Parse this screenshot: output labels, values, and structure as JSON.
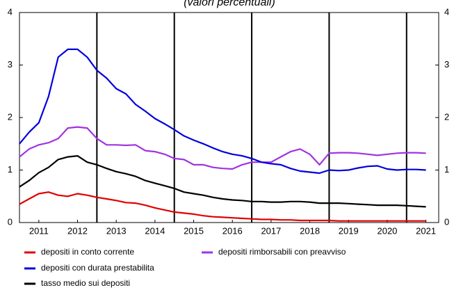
{
  "chart_data": {
    "type": "line",
    "title": "(valori percentuali)",
    "x": [
      2011,
      2011.25,
      2011.5,
      2011.75,
      2012,
      2012.25,
      2012.5,
      2012.75,
      2013,
      2013.25,
      2013.5,
      2013.75,
      2014,
      2014.25,
      2014.5,
      2014.75,
      2015,
      2015.25,
      2015.5,
      2015.75,
      2016,
      2016.25,
      2016.5,
      2016.75,
      2017,
      2017.25,
      2017.5,
      2017.75,
      2018,
      2018.25,
      2018.5,
      2018.75,
      2019,
      2019.25,
      2019.5,
      2019.75,
      2020,
      2020.25,
      2020.5,
      2020.75,
      2021,
      2021.25,
      2021.5
    ],
    "series": [
      {
        "name": "depositi in conto corrente",
        "color": "#e00000",
        "values": [
          0.35,
          0.45,
          0.55,
          0.58,
          0.52,
          0.5,
          0.55,
          0.52,
          0.48,
          0.45,
          0.42,
          0.38,
          0.37,
          0.33,
          0.28,
          0.24,
          0.2,
          0.18,
          0.16,
          0.13,
          0.11,
          0.1,
          0.09,
          0.08,
          0.07,
          0.06,
          0.06,
          0.05,
          0.05,
          0.04,
          0.04,
          0.04,
          0.04,
          0.03,
          0.03,
          0.03,
          0.03,
          0.03,
          0.03,
          0.03,
          0.03,
          0.03,
          0.03
        ]
      },
      {
        "name": "depositi rimborsabili con preavviso",
        "color": "#a033e0",
        "values": [
          1.25,
          1.4,
          1.48,
          1.52,
          1.6,
          1.8,
          1.82,
          1.8,
          1.6,
          1.48,
          1.48,
          1.47,
          1.48,
          1.37,
          1.35,
          1.3,
          1.22,
          1.2,
          1.1,
          1.1,
          1.05,
          1.03,
          1.02,
          1.1,
          1.15,
          1.15,
          1.15,
          1.25,
          1.35,
          1.4,
          1.3,
          1.1,
          1.32,
          1.33,
          1.33,
          1.32,
          1.3,
          1.28,
          1.3,
          1.32,
          1.33,
          1.33,
          1.32
        ]
      },
      {
        "name": "depositi con durata prestabilita",
        "color": "#0000dd",
        "values": [
          1.5,
          1.72,
          1.9,
          2.4,
          3.15,
          3.3,
          3.3,
          3.15,
          2.9,
          2.75,
          2.55,
          2.45,
          2.25,
          2.12,
          1.98,
          1.88,
          1.77,
          1.65,
          1.57,
          1.5,
          1.42,
          1.35,
          1.3,
          1.27,
          1.22,
          1.15,
          1.12,
          1.1,
          1.03,
          0.98,
          0.96,
          0.94,
          1.0,
          0.99,
          1.0,
          1.04,
          1.07,
          1.08,
          1.02,
          1.0,
          1.01,
          1.01,
          1.0
        ]
      },
      {
        "name": "tasso medio sui depositi",
        "color": "#000000",
        "values": [
          0.68,
          0.8,
          0.95,
          1.05,
          1.2,
          1.25,
          1.27,
          1.15,
          1.1,
          1.03,
          0.97,
          0.93,
          0.88,
          0.8,
          0.75,
          0.7,
          0.65,
          0.58,
          0.55,
          0.52,
          0.48,
          0.45,
          0.43,
          0.42,
          0.4,
          0.4,
          0.39,
          0.39,
          0.4,
          0.4,
          0.39,
          0.37,
          0.37,
          0.37,
          0.36,
          0.35,
          0.34,
          0.33,
          0.33,
          0.33,
          0.32,
          0.31,
          0.3
        ]
      }
    ],
    "xlim": [
      2011,
      2021.83
    ],
    "xticks": [
      {
        "value": 2011.5,
        "label": "2011"
      },
      {
        "value": 2012.5,
        "label": "2012"
      },
      {
        "value": 2013.5,
        "label": "2013"
      },
      {
        "value": 2014.5,
        "label": "2014"
      },
      {
        "value": 2015.5,
        "label": "2015"
      },
      {
        "value": 2016.5,
        "label": "2016"
      },
      {
        "value": 2017.5,
        "label": "2017"
      },
      {
        "value": 2018.5,
        "label": "2018"
      },
      {
        "value": 2019.5,
        "label": "2019"
      },
      {
        "value": 2020.5,
        "label": "2020"
      },
      {
        "value": 2021.5,
        "label": "2021"
      }
    ],
    "xgrid": [
      2013,
      2015,
      2017,
      2019,
      2021
    ],
    "ylim": [
      0,
      4
    ],
    "yticks": [
      0,
      1,
      2,
      3,
      4
    ],
    "y2lim": [
      0,
      4
    ],
    "y2ticks": [
      0,
      1,
      2,
      3,
      4
    ]
  }
}
